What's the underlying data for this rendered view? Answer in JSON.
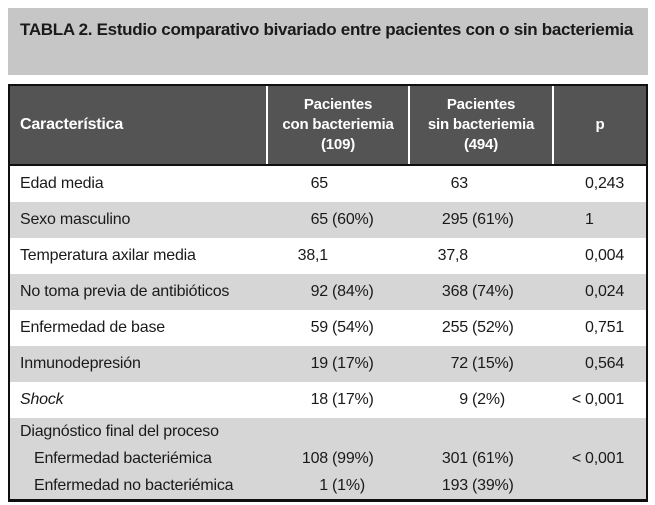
{
  "title": "TABLA 2. Estudio comparativo bivariado entre pacientes con o sin bacteriemia",
  "colors": {
    "title_bg": "#c6c6c6",
    "header_bg": "#545454",
    "header_text": "#ffffff",
    "row_shade": "#d6d6d6",
    "border": "#0f0f0f",
    "text": "#1a1a1a"
  },
  "table": {
    "columns": [
      {
        "key": "caracteristica",
        "label": "Característica"
      },
      {
        "key": "con_bacteriemia",
        "label": "Pacientes\ncon bacteriemia\n(109)"
      },
      {
        "key": "sin_bacteriemia",
        "label": "Pacientes\nsin bacteriemia\n(494)"
      },
      {
        "key": "p",
        "label": "p"
      }
    ],
    "rows": [
      {
        "label": "Edad media",
        "con": "65",
        "sin": "63",
        "p": "0,243",
        "shaded": false,
        "italic": false,
        "indent": false,
        "compact": false
      },
      {
        "label": "Sexo masculino",
        "con": "65 (60%)",
        "sin": "295 (61%)",
        "p": "1",
        "shaded": true,
        "italic": false,
        "indent": false,
        "compact": false
      },
      {
        "label": "Temperatura axilar media",
        "con": "38,1",
        "sin": "37,8",
        "p": "0,004",
        "shaded": false,
        "italic": false,
        "indent": false,
        "compact": false
      },
      {
        "label": "No toma previa de antibióticos",
        "con": "92 (84%)",
        "sin": "368 (74%)",
        "p": "0,024",
        "shaded": true,
        "italic": false,
        "indent": false,
        "compact": false
      },
      {
        "label": "Enfermedad de base",
        "con": "59 (54%)",
        "sin": "255 (52%)",
        "p": "0,751",
        "shaded": false,
        "italic": false,
        "indent": false,
        "compact": false
      },
      {
        "label": "Inmunodepresión",
        "con": "19 (17%)",
        "sin": "72 (15%)",
        "p": "0,564",
        "shaded": true,
        "italic": false,
        "indent": false,
        "compact": false
      },
      {
        "label": "Shock",
        "con": "18 (17%)",
        "sin": "9 (2%)",
        "p": "< 0,001",
        "shaded": false,
        "italic": true,
        "indent": false,
        "compact": false
      },
      {
        "label": "Diagnóstico final del proceso",
        "con": "",
        "sin": "",
        "p": "",
        "shaded": true,
        "italic": false,
        "indent": false,
        "compact": true
      },
      {
        "label": "Enfermedad bacteriémica",
        "con": "108 (99%)",
        "sin": "301 (61%)",
        "p": "< 0,001",
        "shaded": true,
        "italic": false,
        "indent": true,
        "compact": true
      },
      {
        "label": "Enfermedad no bacteriémica",
        "con": "1 (1%)",
        "sin": "193 (39%)",
        "p": "",
        "shaded": true,
        "italic": false,
        "indent": true,
        "compact": true
      }
    ]
  }
}
